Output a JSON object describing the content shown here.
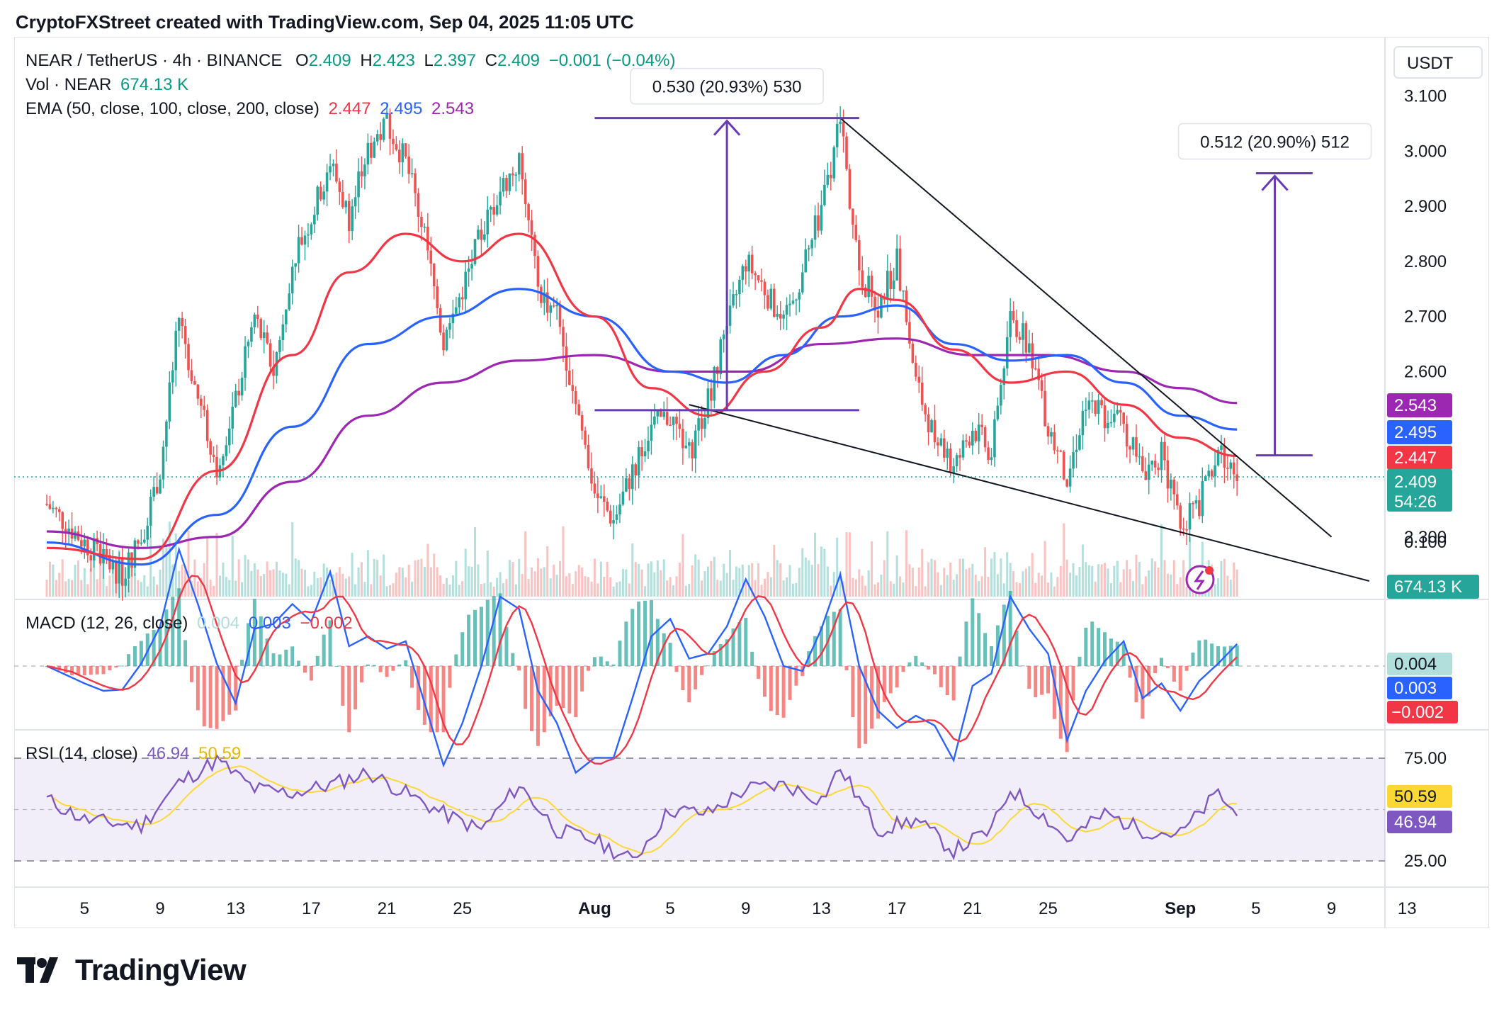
{
  "header": {
    "attribution": "CryptoFXStreet created with TradingView.com, Sep 04, 2025 11:05 UTC"
  },
  "brand": {
    "name": "TradingView",
    "logo_icon": "tradingview-logo-icon"
  },
  "legend": {
    "symbol": "NEAR / TetherUS · 4h · BINANCE",
    "o_label": "O",
    "o": "2.409",
    "h_label": "H",
    "h": "2.423",
    "l_label": "L",
    "l": "2.397",
    "c_label": "C",
    "c": "2.409",
    "change": "−0.001 (−0.04%)",
    "vol_label": "Vol · NEAR",
    "vol": "674.13 K",
    "ema_label": "EMA (50, close, 100, close, 200, close)",
    "ema50": "2.447",
    "ema100": "2.495",
    "ema200": "2.543",
    "macd_label": "MACD (12, 26, close)",
    "macd_hist": "0.004",
    "macd_line": "0.003",
    "macd_signal": "−0.002",
    "rsi_label": "RSI (14, close)",
    "rsi": "46.94",
    "rsi_ma": "50.59"
  },
  "price_axis": {
    "currency": "USDT",
    "ticks": [
      "3.100",
      "3.000",
      "2.900",
      "2.800",
      "2.700",
      "2.600",
      "2.300"
    ],
    "badges": {
      "ema200": "2.543",
      "ema100": "2.495",
      "ema50": "2.447",
      "last": "2.409",
      "countdown": "54:26",
      "volume": "674.13 K"
    }
  },
  "macd_axis": {
    "ticks": [
      "0.100"
    ],
    "badges": {
      "hist": "0.004",
      "macd": "0.003",
      "signal": "−0.002"
    }
  },
  "rsi_axis": {
    "ticks": [
      "75.00",
      "25.00"
    ],
    "badges": {
      "ma": "50.59",
      "rsi": "46.94"
    }
  },
  "time_axis": {
    "ticks": [
      "5",
      "9",
      "13",
      "17",
      "21",
      "25",
      "Aug",
      "5",
      "9",
      "13",
      "17",
      "21",
      "25",
      "Sep",
      "5",
      "9",
      "13"
    ]
  },
  "annotations": {
    "measure_1": "0.530 (20.93%) 530",
    "measure_2": "0.512 (20.90%) 512"
  },
  "colors": {
    "up": "#26a69a",
    "down": "#ef5350",
    "ema50": "#f23645",
    "ema100": "#2962ff",
    "ema200": "#9c27b0",
    "rsi": "#7e57c2",
    "rsi_ma": "#fdd835",
    "drawing": "#673ab7",
    "macd_line": "#2962ff",
    "macd_signal": "#f23645"
  },
  "chart_data": {
    "type": "candlestick",
    "title": "NEAR / TetherUS · 4h · BINANCE",
    "x_range": [
      "Jul 3, 2025",
      "Sep 14, 2025"
    ],
    "price_range": [
      2.22,
      3.12
    ],
    "close_path": [
      [
        "Jul 3",
        2.36
      ],
      [
        "Jul 5",
        2.29
      ],
      [
        "Jul 7",
        2.23
      ],
      [
        "Jul 8",
        2.3
      ],
      [
        "Jul 9",
        2.42
      ],
      [
        "Jul 10",
        2.7
      ],
      [
        "Jul 11",
        2.55
      ],
      [
        "Jul 12",
        2.43
      ],
      [
        "Jul 13",
        2.55
      ],
      [
        "Jul 14",
        2.7
      ],
      [
        "Jul 15",
        2.6
      ],
      [
        "Jul 16",
        2.8
      ],
      [
        "Jul 17",
        2.88
      ],
      [
        "Jul 18",
        2.98
      ],
      [
        "Jul 19",
        2.88
      ],
      [
        "Jul 20",
        3.0
      ],
      [
        "Jul 21",
        3.05
      ],
      [
        "Jul 22",
        2.98
      ],
      [
        "Jul 23",
        2.85
      ],
      [
        "Jul 24",
        2.65
      ],
      [
        "Jul 25",
        2.75
      ],
      [
        "Jul 26",
        2.85
      ],
      [
        "Jul 27",
        2.93
      ],
      [
        "Jul 28",
        2.98
      ],
      [
        "Jul 29",
        2.75
      ],
      [
        "Jul 30",
        2.7
      ],
      [
        "Jul 31",
        2.55
      ],
      [
        "Aug 1",
        2.38
      ],
      [
        "Aug 2",
        2.33
      ],
      [
        "Aug 3",
        2.42
      ],
      [
        "Aug 4",
        2.5
      ],
      [
        "Aug 5",
        2.52
      ],
      [
        "Aug 6",
        2.45
      ],
      [
        "Aug 7",
        2.55
      ],
      [
        "Aug 8",
        2.68
      ],
      [
        "Aug 9",
        2.8
      ],
      [
        "Aug 10",
        2.75
      ],
      [
        "Aug 11",
        2.68
      ],
      [
        "Aug 12",
        2.78
      ],
      [
        "Aug 13",
        2.9
      ],
      [
        "Aug 14",
        3.05
      ],
      [
        "Aug 15",
        2.78
      ],
      [
        "Aug 16",
        2.72
      ],
      [
        "Aug 17",
        2.8
      ],
      [
        "Aug 18",
        2.58
      ],
      [
        "Aug 19",
        2.48
      ],
      [
        "Aug 20",
        2.42
      ],
      [
        "Aug 21",
        2.5
      ],
      [
        "Aug 22",
        2.45
      ],
      [
        "Aug 23",
        2.7
      ],
      [
        "Aug 24",
        2.65
      ],
      [
        "Aug 25",
        2.5
      ],
      [
        "Aug 26",
        2.4
      ],
      [
        "Aug 27",
        2.55
      ],
      [
        "Aug 28",
        2.52
      ],
      [
        "Aug 29",
        2.5
      ],
      [
        "Aug 30",
        2.42
      ],
      [
        "Aug 31",
        2.45
      ],
      [
        "Sep 1",
        2.32
      ],
      [
        "Sep 2",
        2.36
      ],
      [
        "Sep 3",
        2.46
      ],
      [
        "Sep 4",
        2.409
      ]
    ],
    "ema50": [
      [
        "Jul 3",
        2.28
      ],
      [
        "Jul 8",
        2.26
      ],
      [
        "Jul 12",
        2.42
      ],
      [
        "Jul 16",
        2.63
      ],
      [
        "Jul 19",
        2.78
      ],
      [
        "Jul 22",
        2.85
      ],
      [
        "Jul 25",
        2.8
      ],
      [
        "Jul 28",
        2.85
      ],
      [
        "Aug 1",
        2.7
      ],
      [
        "Aug 4",
        2.57
      ],
      [
        "Aug 7",
        2.52
      ],
      [
        "Aug 10",
        2.6
      ],
      [
        "Aug 13",
        2.68
      ],
      [
        "Aug 15",
        2.75
      ],
      [
        "Aug 17",
        2.73
      ],
      [
        "Aug 20",
        2.64
      ],
      [
        "Aug 23",
        2.58
      ],
      [
        "Aug 26",
        2.6
      ],
      [
        "Aug 29",
        2.54
      ],
      [
        "Sep 1",
        2.48
      ],
      [
        "Sep 4",
        2.447
      ]
    ],
    "ema100": [
      [
        "Jul 3",
        2.29
      ],
      [
        "Jul 8",
        2.25
      ],
      [
        "Jul 12",
        2.34
      ],
      [
        "Jul 16",
        2.5
      ],
      [
        "Jul 20",
        2.65
      ],
      [
        "Jul 24",
        2.7
      ],
      [
        "Jul 28",
        2.75
      ],
      [
        "Aug 1",
        2.7
      ],
      [
        "Aug 5",
        2.6
      ],
      [
        "Aug 8",
        2.58
      ],
      [
        "Aug 11",
        2.63
      ],
      [
        "Aug 14",
        2.7
      ],
      [
        "Aug 17",
        2.72
      ],
      [
        "Aug 20",
        2.65
      ],
      [
        "Aug 23",
        2.62
      ],
      [
        "Aug 26",
        2.63
      ],
      [
        "Aug 29",
        2.58
      ],
      [
        "Sep 1",
        2.52
      ],
      [
        "Sep 4",
        2.495
      ]
    ],
    "ema200": [
      [
        "Jul 3",
        2.31
      ],
      [
        "Jul 8",
        2.28
      ],
      [
        "Jul 12",
        2.3
      ],
      [
        "Jul 16",
        2.4
      ],
      [
        "Jul 20",
        2.52
      ],
      [
        "Jul 24",
        2.58
      ],
      [
        "Jul 28",
        2.62
      ],
      [
        "Aug 1",
        2.63
      ],
      [
        "Aug 5",
        2.6
      ],
      [
        "Aug 9",
        2.6
      ],
      [
        "Aug 13",
        2.65
      ],
      [
        "Aug 17",
        2.66
      ],
      [
        "Aug 21",
        2.63
      ],
      [
        "Aug 25",
        2.63
      ],
      [
        "Aug 29",
        2.6
      ],
      [
        "Sep 1",
        2.57
      ],
      [
        "Sep 4",
        2.543
      ]
    ],
    "wedge_upper": [
      [
        "Aug 14",
        3.06
      ],
      [
        "Sep 9",
        2.3
      ]
    ],
    "wedge_lower": [
      [
        "Aug 6",
        2.54
      ],
      [
        "Sep 11",
        2.22
      ]
    ],
    "measure_1": {
      "from": [
        "Aug 8",
        2.53
      ],
      "to": [
        "Aug 8",
        3.06
      ],
      "range_x": [
        "Aug 1",
        "Aug 15"
      ]
    },
    "measure_2": {
      "from": [
        "Sep 6",
        2.448
      ],
      "to": [
        "Sep 6",
        2.96
      ],
      "range_x": [
        "Sep 5",
        "Sep 8"
      ]
    },
    "rsi": {
      "levels": [
        25,
        50,
        75
      ],
      "path": [
        [
          "Jul 3",
          55
        ],
        [
          "Jul 5",
          45
        ],
        [
          "Jul 8",
          42
        ],
        [
          "Jul 10",
          63
        ],
        [
          "Jul 12",
          74
        ],
        [
          "Jul 14",
          60
        ],
        [
          "Jul 16",
          58
        ],
        [
          "Jul 18",
          62
        ],
        [
          "Jul 20",
          68
        ],
        [
          "Jul 22",
          58
        ],
        [
          "Jul 24",
          48
        ],
        [
          "Jul 26",
          40
        ],
        [
          "Jul 28",
          62
        ],
        [
          "Jul 30",
          40
        ],
        [
          "Aug 1",
          35
        ],
        [
          "Aug 3",
          25
        ],
        [
          "Aug 5",
          50
        ],
        [
          "Aug 7",
          48
        ],
        [
          "Aug 9",
          60
        ],
        [
          "Aug 11",
          62
        ],
        [
          "Aug 13",
          55
        ],
        [
          "Aug 14",
          70
        ],
        [
          "Aug 16",
          40
        ],
        [
          "Aug 18",
          45
        ],
        [
          "Aug 20",
          30
        ],
        [
          "Aug 22",
          40
        ],
        [
          "Aug 23",
          60
        ],
        [
          "Aug 25",
          45
        ],
        [
          "Aug 26",
          35
        ],
        [
          "Aug 28",
          48
        ],
        [
          "Aug 30",
          40
        ],
        [
          "Sep 1",
          38
        ],
        [
          "Sep 3",
          58
        ],
        [
          "Sep 4",
          46.94
        ]
      ]
    }
  }
}
